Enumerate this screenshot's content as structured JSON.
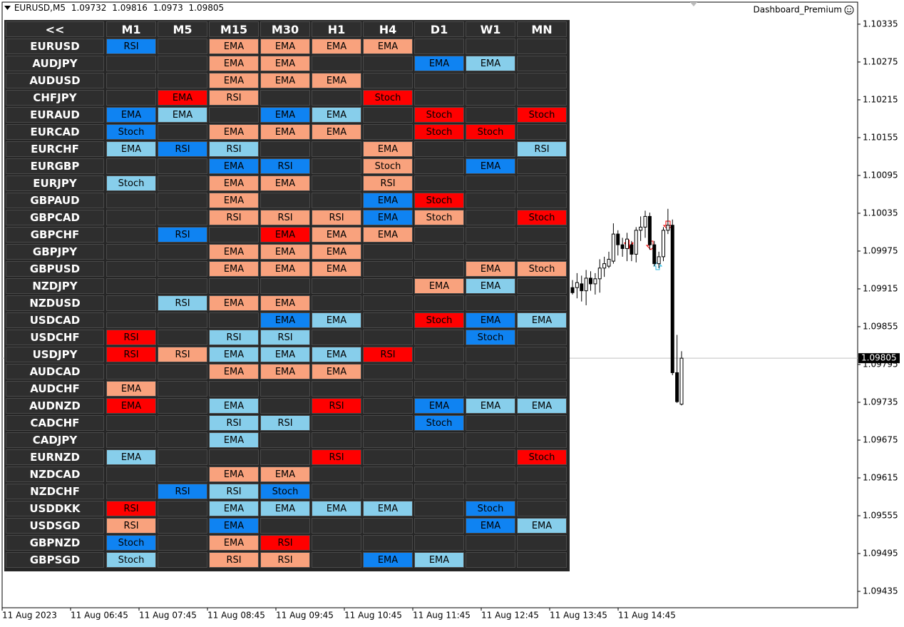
{
  "header": {
    "symbol": "EURUSD,M5",
    "indicator": "Dashboard_Premium"
  },
  "dashboard": {
    "corner": "<<",
    "columns": [
      "M1",
      "M5",
      "M15",
      "M30",
      "H1",
      "H4",
      "D1",
      "W1",
      "MN"
    ],
    "rows": [
      {
        "pair": "EURUSD",
        "cells": [
          [
            "RSI",
            "#0f83f2"
          ],
          null,
          [
            "EMA",
            "#f9a27d"
          ],
          [
            "EMA",
            "#f9a27d"
          ],
          [
            "EMA",
            "#f9a27d"
          ],
          [
            "EMA",
            "#f9a27d"
          ],
          null,
          null,
          null
        ]
      },
      {
        "pair": "AUDJPY",
        "cells": [
          null,
          null,
          [
            "EMA",
            "#f9a27d"
          ],
          [
            "EMA",
            "#f9a27d"
          ],
          null,
          null,
          [
            "EMA",
            "#0f83f2"
          ],
          [
            "EMA",
            "#87ceeb"
          ],
          null
        ]
      },
      {
        "pair": "AUDUSD",
        "cells": [
          null,
          null,
          [
            "EMA",
            "#f9a27d"
          ],
          [
            "EMA",
            "#f9a27d"
          ],
          [
            "EMA",
            "#f9a27d"
          ],
          null,
          null,
          null,
          null
        ]
      },
      {
        "pair": "CHFJPY",
        "cells": [
          null,
          [
            "EMA",
            "#ff0000"
          ],
          [
            "RSI",
            "#f9a27d"
          ],
          null,
          null,
          [
            "Stoch",
            "#ff0000"
          ],
          null,
          null,
          null
        ]
      },
      {
        "pair": "EURAUD",
        "cells": [
          [
            "EMA",
            "#0f83f2"
          ],
          [
            "EMA",
            "#87ceeb"
          ],
          null,
          [
            "EMA",
            "#0f83f2"
          ],
          [
            "EMA",
            "#87ceeb"
          ],
          null,
          [
            "Stoch",
            "#ff0000"
          ],
          null,
          [
            "Stoch",
            "#ff0000"
          ]
        ]
      },
      {
        "pair": "EURCAD",
        "cells": [
          [
            "Stoch",
            "#0f83f2"
          ],
          null,
          [
            "EMA",
            "#f9a27d"
          ],
          [
            "EMA",
            "#f9a27d"
          ],
          [
            "EMA",
            "#f9a27d"
          ],
          null,
          [
            "Stoch",
            "#ff0000"
          ],
          [
            "Stoch",
            "#ff0000"
          ],
          null
        ]
      },
      {
        "pair": "EURCHF",
        "cells": [
          [
            "EMA",
            "#87ceeb"
          ],
          [
            "RSI",
            "#0f83f2"
          ],
          [
            "RSI",
            "#87ceeb"
          ],
          null,
          null,
          [
            "EMA",
            "#f9a27d"
          ],
          null,
          null,
          [
            "RSI",
            "#87ceeb"
          ]
        ]
      },
      {
        "pair": "EURGBP",
        "cells": [
          null,
          null,
          [
            "EMA",
            "#0f83f2"
          ],
          [
            "RSI",
            "#0f83f2"
          ],
          null,
          [
            "Stoch",
            "#f9a27d"
          ],
          null,
          [
            "EMA",
            "#0f83f2"
          ],
          null
        ]
      },
      {
        "pair": "EURJPY",
        "cells": [
          [
            "Stoch",
            "#87ceeb"
          ],
          null,
          [
            "EMA",
            "#f9a27d"
          ],
          [
            "EMA",
            "#f9a27d"
          ],
          null,
          [
            "RSI",
            "#f9a27d"
          ],
          null,
          null,
          null
        ]
      },
      {
        "pair": "GBPAUD",
        "cells": [
          null,
          null,
          [
            "EMA",
            "#f9a27d"
          ],
          null,
          null,
          [
            "EMA",
            "#0f83f2"
          ],
          [
            "Stoch",
            "#ff0000"
          ],
          null,
          null
        ]
      },
      {
        "pair": "GBPCAD",
        "cells": [
          null,
          null,
          [
            "RSI",
            "#f9a27d"
          ],
          [
            "RSI",
            "#f9a27d"
          ],
          [
            "RSI",
            "#f9a27d"
          ],
          [
            "EMA",
            "#0f83f2"
          ],
          [
            "Stoch",
            "#f9a27d"
          ],
          null,
          [
            "Stoch",
            "#ff0000"
          ]
        ]
      },
      {
        "pair": "GBPCHF",
        "cells": [
          null,
          [
            "RSI",
            "#0f83f2"
          ],
          null,
          [
            "EMA",
            "#ff0000"
          ],
          [
            "EMA",
            "#f9a27d"
          ],
          [
            "EMA",
            "#f9a27d"
          ],
          null,
          null,
          null
        ]
      },
      {
        "pair": "GBPJPY",
        "cells": [
          null,
          null,
          [
            "EMA",
            "#f9a27d"
          ],
          [
            "EMA",
            "#f9a27d"
          ],
          [
            "EMA",
            "#f9a27d"
          ],
          null,
          null,
          null,
          null
        ]
      },
      {
        "pair": "GBPUSD",
        "cells": [
          null,
          null,
          [
            "EMA",
            "#f9a27d"
          ],
          [
            "EMA",
            "#f9a27d"
          ],
          [
            "EMA",
            "#f9a27d"
          ],
          null,
          null,
          [
            "EMA",
            "#f9a27d"
          ],
          [
            "Stoch",
            "#f9a27d"
          ]
        ]
      },
      {
        "pair": "NZDJPY",
        "cells": [
          null,
          null,
          null,
          null,
          null,
          null,
          [
            "EMA",
            "#f9a27d"
          ],
          [
            "EMA",
            "#87ceeb"
          ],
          null
        ]
      },
      {
        "pair": "NZDUSD",
        "cells": [
          null,
          [
            "RSI",
            "#87ceeb"
          ],
          [
            "EMA",
            "#f9a27d"
          ],
          [
            "EMA",
            "#f9a27d"
          ],
          null,
          null,
          null,
          null,
          null
        ]
      },
      {
        "pair": "USDCAD",
        "cells": [
          null,
          null,
          null,
          [
            "EMA",
            "#0f83f2"
          ],
          [
            "EMA",
            "#87ceeb"
          ],
          null,
          [
            "Stoch",
            "#ff0000"
          ],
          [
            "EMA",
            "#0f83f2"
          ],
          [
            "EMA",
            "#87ceeb"
          ]
        ]
      },
      {
        "pair": "USDCHF",
        "cells": [
          [
            "RSI",
            "#ff0000"
          ],
          null,
          [
            "RSI",
            "#87ceeb"
          ],
          [
            "RSI",
            "#87ceeb"
          ],
          null,
          null,
          null,
          [
            "Stoch",
            "#0f83f2"
          ],
          null
        ]
      },
      {
        "pair": "USDJPY",
        "cells": [
          [
            "RSI",
            "#ff0000"
          ],
          [
            "RSI",
            "#f9a27d"
          ],
          [
            "EMA",
            "#87ceeb"
          ],
          [
            "EMA",
            "#87ceeb"
          ],
          [
            "EMA",
            "#87ceeb"
          ],
          [
            "RSI",
            "#ff0000"
          ],
          null,
          null,
          null
        ]
      },
      {
        "pair": "AUDCAD",
        "cells": [
          null,
          null,
          [
            "EMA",
            "#f9a27d"
          ],
          [
            "EMA",
            "#f9a27d"
          ],
          [
            "EMA",
            "#f9a27d"
          ],
          null,
          null,
          null,
          null
        ]
      },
      {
        "pair": "AUDCHF",
        "cells": [
          [
            "EMA",
            "#f9a27d"
          ],
          null,
          null,
          null,
          null,
          null,
          null,
          null,
          null
        ]
      },
      {
        "pair": "AUDNZD",
        "cells": [
          [
            "EMA",
            "#ff0000"
          ],
          null,
          [
            "EMA",
            "#87ceeb"
          ],
          null,
          [
            "RSI",
            "#ff0000"
          ],
          null,
          [
            "EMA",
            "#0f83f2"
          ],
          [
            "EMA",
            "#87ceeb"
          ],
          [
            "EMA",
            "#87ceeb"
          ]
        ]
      },
      {
        "pair": "CADCHF",
        "cells": [
          null,
          null,
          [
            "RSI",
            "#87ceeb"
          ],
          [
            "RSI",
            "#87ceeb"
          ],
          null,
          null,
          [
            "Stoch",
            "#0f83f2"
          ],
          null,
          null
        ]
      },
      {
        "pair": "CADJPY",
        "cells": [
          null,
          null,
          [
            "EMA",
            "#87ceeb"
          ],
          null,
          null,
          null,
          null,
          null,
          null
        ]
      },
      {
        "pair": "EURNZD",
        "cells": [
          [
            "EMA",
            "#87ceeb"
          ],
          null,
          null,
          null,
          [
            "RSI",
            "#ff0000"
          ],
          null,
          null,
          null,
          [
            "Stoch",
            "#ff0000"
          ]
        ]
      },
      {
        "pair": "NZDCAD",
        "cells": [
          null,
          null,
          [
            "EMA",
            "#f9a27d"
          ],
          [
            "EMA",
            "#f9a27d"
          ],
          null,
          null,
          null,
          null,
          null
        ]
      },
      {
        "pair": "NZDCHF",
        "cells": [
          null,
          [
            "RSI",
            "#0f83f2"
          ],
          [
            "RSI",
            "#87ceeb"
          ],
          [
            "Stoch",
            "#0f83f2"
          ],
          null,
          null,
          null,
          null,
          null
        ]
      },
      {
        "pair": "USDDKK",
        "cells": [
          [
            "RSI",
            "#ff0000"
          ],
          null,
          [
            "EMA",
            "#87ceeb"
          ],
          [
            "EMA",
            "#87ceeb"
          ],
          [
            "EMA",
            "#87ceeb"
          ],
          [
            "EMA",
            "#87ceeb"
          ],
          null,
          [
            "Stoch",
            "#0f83f2"
          ],
          null
        ]
      },
      {
        "pair": "USDSGD",
        "cells": [
          [
            "RSI",
            "#f9a27d"
          ],
          null,
          [
            "EMA",
            "#0f83f2"
          ],
          null,
          null,
          null,
          null,
          [
            "EMA",
            "#0f83f2"
          ],
          [
            "EMA",
            "#87ceeb"
          ]
        ]
      },
      {
        "pair": "GBPNZD",
        "cells": [
          [
            "Stoch",
            "#0f83f2"
          ],
          null,
          [
            "EMA",
            "#f9a27d"
          ],
          [
            "RSI",
            "#ff0000"
          ],
          null,
          null,
          null,
          null,
          null
        ]
      },
      {
        "pair": "GBPSGD",
        "cells": [
          [
            "Stoch",
            "#87ceeb"
          ],
          null,
          [
            "RSI",
            "#f9a27d"
          ],
          [
            "RSI",
            "#f9a27d"
          ],
          null,
          [
            "EMA",
            "#0f83f2"
          ],
          [
            "EMA",
            "#87ceeb"
          ],
          null,
          null
        ]
      }
    ]
  },
  "chart_data": {
    "type": "candlestick",
    "opens": [
      1.09917,
      1.09917,
      1.09923,
      1.09912,
      1.09932,
      1.09923,
      1.09931,
      1.09948,
      1.09951,
      1.09959,
      1.10002,
      1.09985,
      1.09979,
      1.09985,
      1.0997,
      1.10008,
      1.10013,
      1.1003,
      1.09985,
      1.09955,
      1.09966,
      1.10008,
      1.10016,
      1.09782,
      1.09732
    ],
    "highs": [
      1.09929,
      1.0994,
      1.09936,
      1.09945,
      1.09943,
      1.0994,
      1.09962,
      1.09966,
      1.09974,
      1.10019,
      1.10008,
      1.09996,
      1.10004,
      1.09991,
      1.10013,
      1.1003,
      1.10039,
      1.10036,
      1.09991,
      1.09974,
      1.10013,
      1.10042,
      1.10025,
      1.09842,
      1.09816
    ],
    "lows": [
      1.09906,
      1.099,
      1.09895,
      1.09889,
      1.09912,
      1.09906,
      1.09909,
      1.09934,
      1.09948,
      1.09955,
      1.09968,
      1.09966,
      1.09959,
      1.09959,
      1.09957,
      1.09991,
      1.09996,
      1.09977,
      1.09951,
      1.09948,
      1.09959,
      1.10002,
      1.09778,
      1.09734,
      1.0973
    ],
    "closes": [
      1.09909,
      1.09925,
      1.09912,
      1.09932,
      1.09923,
      1.09931,
      1.09948,
      1.09955,
      1.09962,
      1.10002,
      1.09985,
      1.09979,
      1.09994,
      1.0997,
      1.10008,
      1.10013,
      1.1003,
      1.09985,
      1.09955,
      1.09966,
      1.10008,
      1.10016,
      1.09782,
      1.09736,
      1.09805
    ],
    "ylim": [
      1.09409,
      1.1037
    ],
    "yticks": [
      1.10335,
      1.10275,
      1.10215,
      1.10155,
      1.10095,
      1.10035,
      1.09975,
      1.09915,
      1.09855,
      1.09795,
      1.09735,
      1.09675,
      1.09615,
      1.09555,
      1.09495,
      1.09435
    ],
    "time_labels": [
      "11 Aug 2023",
      "11 Aug 06:45",
      "11 Aug 07:45",
      "11 Aug 08:45",
      "11 Aug 09:45",
      "11 Aug 10:45",
      "11 Aug 11:45",
      "11 Aug 12:45",
      "11 Aug 13:45",
      "11 Aug 14:45"
    ]
  }
}
